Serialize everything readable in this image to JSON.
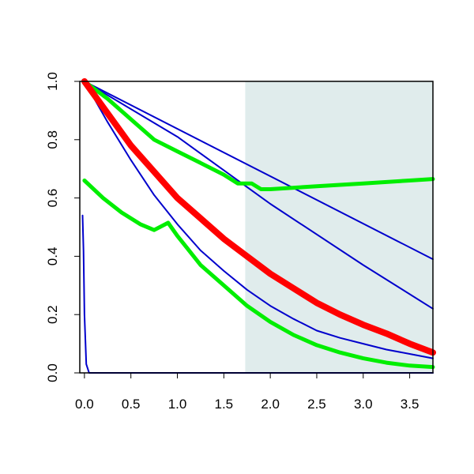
{
  "chart_data": {
    "type": "line",
    "title": "",
    "xlabel": "",
    "ylabel": "",
    "xlim": [
      -0.05,
      3.75
    ],
    "ylim": [
      0.0,
      1.0
    ],
    "x_ticks": [
      0.0,
      0.5,
      1.0,
      1.5,
      2.0,
      2.5,
      3.0,
      3.5
    ],
    "x_tick_labels": [
      "0.0",
      "0.5",
      "1.0",
      "1.5",
      "2.0",
      "2.5",
      "3.0",
      "3.5"
    ],
    "y_ticks": [
      0.0,
      0.2,
      0.4,
      0.6,
      0.8,
      1.0
    ],
    "y_tick_labels": [
      "0.0",
      "0.2",
      "0.4",
      "0.6",
      "0.8",
      "1.0"
    ],
    "grid": false,
    "legend": "none",
    "shaded_region": {
      "x_start": 1.73,
      "x_end": 3.75,
      "color": "#e0ecec"
    },
    "series": [
      {
        "color": "#0000cc",
        "points": [
          [
            0,
            1.0
          ],
          [
            3.75,
            0.39
          ]
        ]
      },
      {
        "color": "#0000cc",
        "points": [
          [
            0,
            1.0
          ],
          [
            1.0,
            0.81
          ],
          [
            2.0,
            0.58
          ],
          [
            3.0,
            0.37
          ],
          [
            3.75,
            0.22
          ]
        ]
      },
      {
        "color": "#0000cc",
        "points": [
          [
            0,
            1.0
          ],
          [
            0.25,
            0.86
          ],
          [
            0.5,
            0.73
          ],
          [
            0.75,
            0.61
          ],
          [
            1.0,
            0.51
          ],
          [
            1.25,
            0.42
          ],
          [
            1.5,
            0.35
          ],
          [
            1.75,
            0.285
          ],
          [
            2.0,
            0.23
          ],
          [
            2.25,
            0.185
          ],
          [
            2.5,
            0.145
          ],
          [
            2.75,
            0.12
          ],
          [
            3.0,
            0.1
          ],
          [
            3.25,
            0.08
          ],
          [
            3.5,
            0.065
          ],
          [
            3.75,
            0.05
          ]
        ]
      },
      {
        "color": "#0000cc",
        "points": [
          [
            -0.02,
            0.54
          ],
          [
            -0.01,
            0.42
          ],
          [
            0.0,
            0.2
          ],
          [
            0.02,
            0.03
          ],
          [
            0.05,
            0.0
          ],
          [
            3.75,
            0.0
          ]
        ]
      },
      {
        "color": "#00ee00",
        "points": [
          [
            0,
            1.0
          ],
          [
            0.25,
            0.94
          ],
          [
            0.5,
            0.87
          ],
          [
            0.75,
            0.8
          ],
          [
            1.0,
            0.76
          ],
          [
            1.25,
            0.72
          ],
          [
            1.5,
            0.68
          ],
          [
            1.65,
            0.65
          ],
          [
            1.8,
            0.65
          ],
          [
            1.9,
            0.63
          ],
          [
            2.0,
            0.63
          ],
          [
            2.5,
            0.64
          ],
          [
            3.0,
            0.65
          ],
          [
            3.5,
            0.66
          ],
          [
            3.75,
            0.665
          ]
        ]
      },
      {
        "color": "#00ee00",
        "points": [
          [
            0,
            0.66
          ],
          [
            0.2,
            0.6
          ],
          [
            0.4,
            0.55
          ],
          [
            0.6,
            0.51
          ],
          [
            0.75,
            0.49
          ],
          [
            0.9,
            0.515
          ],
          [
            1.0,
            0.47
          ],
          [
            1.1,
            0.43
          ],
          [
            1.25,
            0.37
          ],
          [
            1.5,
            0.3
          ],
          [
            1.75,
            0.23
          ],
          [
            2.0,
            0.175
          ],
          [
            2.25,
            0.13
          ],
          [
            2.5,
            0.095
          ],
          [
            2.75,
            0.07
          ],
          [
            3.0,
            0.05
          ],
          [
            3.25,
            0.035
          ],
          [
            3.5,
            0.025
          ],
          [
            3.75,
            0.02
          ]
        ]
      },
      {
        "color": "#ff0000",
        "points": [
          [
            0,
            1.0
          ],
          [
            0.25,
            0.89
          ],
          [
            0.5,
            0.78
          ],
          [
            0.75,
            0.69
          ],
          [
            1.0,
            0.6
          ],
          [
            1.25,
            0.53
          ],
          [
            1.5,
            0.46
          ],
          [
            1.75,
            0.4
          ],
          [
            2.0,
            0.34
          ],
          [
            2.25,
            0.29
          ],
          [
            2.5,
            0.24
          ],
          [
            2.75,
            0.2
          ],
          [
            3.0,
            0.165
          ],
          [
            3.25,
            0.135
          ],
          [
            3.5,
            0.1
          ],
          [
            3.75,
            0.07
          ]
        ]
      }
    ]
  }
}
